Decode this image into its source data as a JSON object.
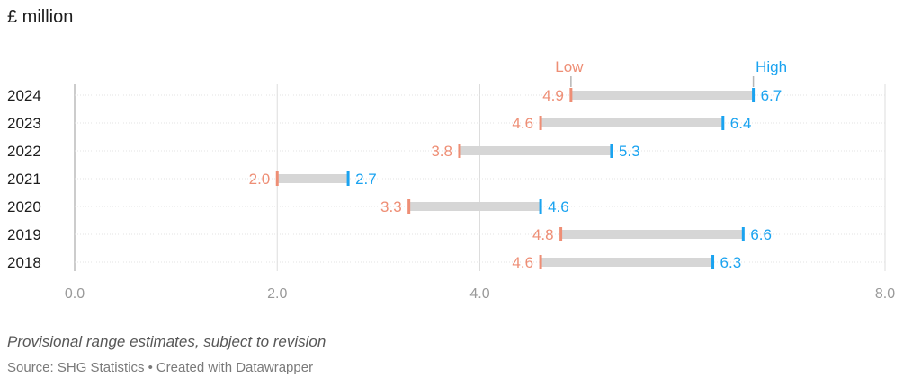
{
  "header": {
    "unit_title": "£ million"
  },
  "chart_data": {
    "type": "range-plot",
    "categories": [
      "2024",
      "2023",
      "2022",
      "2021",
      "2020",
      "2019",
      "2018"
    ],
    "series": [
      {
        "name": "Low",
        "values": [
          4.9,
          4.6,
          3.8,
          2.0,
          3.3,
          4.8,
          4.6
        ]
      },
      {
        "name": "High",
        "values": [
          6.7,
          6.4,
          5.3,
          2.7,
          4.6,
          6.6,
          6.3
        ]
      }
    ],
    "value_labels": {
      "low": [
        "4.9",
        "4.6",
        "3.8",
        "2.0",
        "3.3",
        "4.8",
        "4.6"
      ],
      "high": [
        "6.7",
        "6.4",
        "5.3",
        "2.7",
        "4.6",
        "6.6",
        "6.3"
      ]
    },
    "xlim": [
      0,
      8
    ],
    "x_ticks": [
      0,
      2,
      4,
      8
    ],
    "x_tick_labels": [
      "0.0",
      "2.0",
      "4.0",
      "8.0"
    ],
    "grid": true,
    "legend_placement": "above first row, at the bar ends",
    "colors": {
      "low": "#ee8e75",
      "high": "#1aa3f0",
      "range_bar": "#d6d6d6",
      "grid": "#dddddd",
      "tick_text": "#999999"
    }
  },
  "footer": {
    "notes": "Provisional range estimates, subject to revision",
    "source_prefix": "Source: SHG Statistics",
    "separator": "•",
    "credit": "Created with Datawrapper"
  }
}
